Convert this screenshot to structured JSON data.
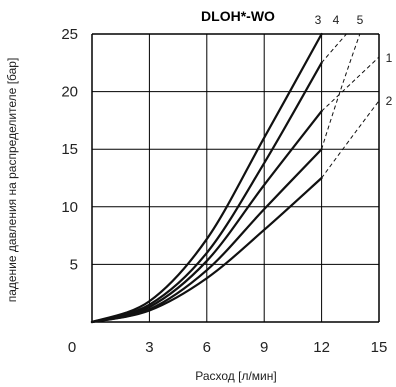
{
  "chart_data": {
    "type": "line",
    "title": "DLOH*-WO",
    "xlabel": "Расход [л/мин]",
    "ylabel": "падение давления на распределителе [бар]",
    "xlim": [
      0,
      15
    ],
    "ylim": [
      0,
      25
    ],
    "x_ticks": [
      "0",
      "3",
      "6",
      "9",
      "12",
      "15"
    ],
    "y_ticks": [
      "5",
      "10",
      "15",
      "20",
      "25"
    ],
    "grid": true,
    "series": [
      {
        "name": "1",
        "x": [
          0,
          3,
          6,
          9,
          12
        ],
        "y": [
          0,
          1.3,
          5.3,
          11.9,
          18.3
        ],
        "ext_x": [
          12,
          15
        ],
        "ext_y": [
          18.3,
          23.0
        ]
      },
      {
        "name": "2",
        "x": [
          0,
          3,
          6,
          9,
          12
        ],
        "y": [
          0,
          1.0,
          3.8,
          8.0,
          12.5
        ],
        "ext_x": [
          12,
          15
        ],
        "ext_y": [
          12.5,
          19.2
        ]
      },
      {
        "name": "3",
        "x": [
          0,
          3,
          6,
          9,
          12
        ],
        "y": [
          0,
          1.8,
          7.2,
          16.0,
          25.0
        ],
        "ext_x": [],
        "ext_y": []
      },
      {
        "name": "4",
        "x": [
          0,
          3,
          6,
          9,
          12
        ],
        "y": [
          0,
          1.5,
          6.0,
          13.8,
          22.5
        ],
        "ext_x": [
          12,
          13.3
        ],
        "ext_y": [
          22.5,
          25.0
        ]
      },
      {
        "name": "5",
        "x": [
          0,
          3,
          6,
          9,
          12
        ],
        "y": [
          0,
          1.1,
          4.5,
          9.8,
          15.0
        ],
        "ext_x": [
          12,
          14.0
        ],
        "ext_y": [
          15.0,
          25.0
        ]
      }
    ],
    "label_positions": {
      "1": "right-upper",
      "2": "right-lower",
      "3": "top",
      "4": "top",
      "5": "top"
    }
  }
}
